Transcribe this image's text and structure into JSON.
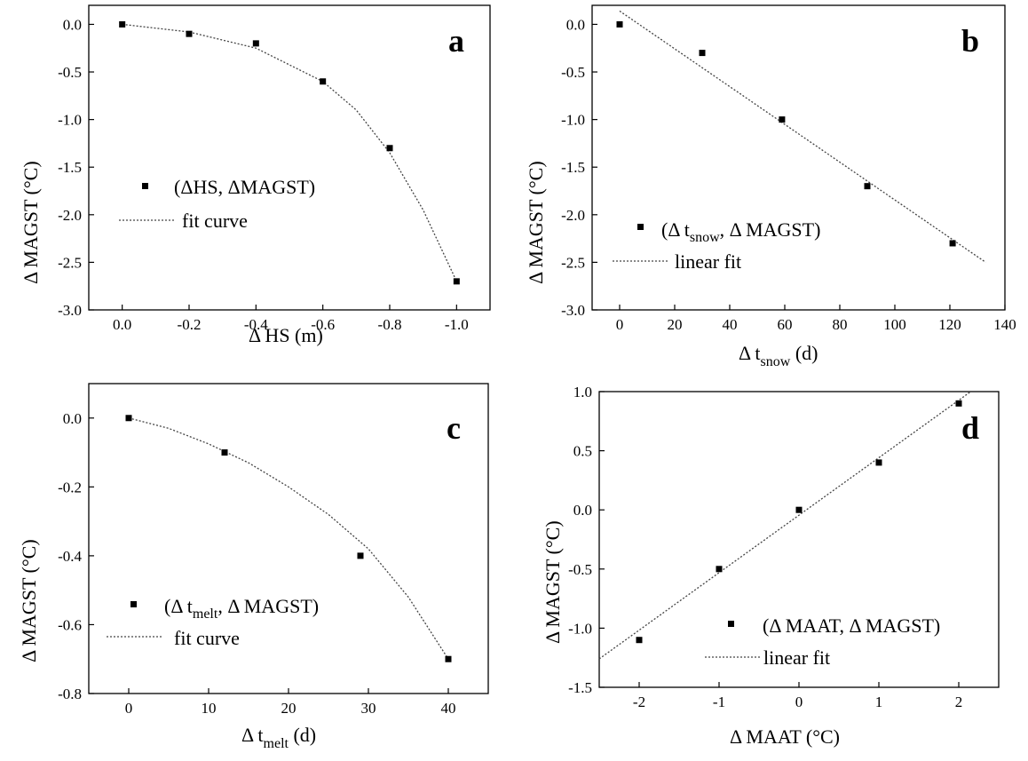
{
  "figure": {
    "panels": [
      {
        "letter": "a",
        "x_label": "Δ  HS (m)",
        "y_label": "Δ MAGST (°C)",
        "legend": [
          {
            "marker": "square",
            "text": "(ΔHS, ΔMAGST)"
          },
          {
            "marker": "dotted-line",
            "text": "fit curve"
          }
        ]
      },
      {
        "letter": "b",
        "x_label": "Δ t",
        "x_label_sub": "snow",
        "x_label_tail": " (d)",
        "y_label": "Δ MAGST (°C)",
        "legend": [
          {
            "marker": "square",
            "text": "(Δ t",
            "sub": "snow",
            "tail": ", Δ MAGST)"
          },
          {
            "marker": "dotted-line",
            "text": "linear fit"
          }
        ]
      },
      {
        "letter": "c",
        "x_label": "Δ t",
        "x_label_sub": "melt",
        "x_label_tail": " (d)",
        "y_label": "Δ MAGST (°C)",
        "legend": [
          {
            "marker": "square",
            "text": "(Δ t",
            "sub": "melt",
            "tail": ", Δ MAGST)"
          },
          {
            "marker": "dotted-line",
            "text": "fit curve"
          }
        ]
      },
      {
        "letter": "d",
        "x_label": "Δ MAAT (°C)",
        "y_label": "Δ MAGST (°C)",
        "legend": [
          {
            "marker": "square",
            "text": "(Δ MAAT, Δ MAGST)"
          },
          {
            "marker": "dotted-line",
            "text": "linear fit"
          }
        ]
      }
    ]
  },
  "chart_data": [
    {
      "type": "scatter",
      "panel": "a",
      "x_ticks": [
        "0.0",
        "-0.2",
        "-0.4",
        "-0.6",
        "-0.8",
        "-1.0"
      ],
      "x_tick_values": [
        0.0,
        -0.2,
        -0.4,
        -0.6,
        -0.8,
        -1.0
      ],
      "y_ticks": [
        "0.0",
        "-0.5",
        "-1.0",
        "-1.5",
        "-2.0",
        "-2.5",
        "-3.0"
      ],
      "y_tick_values": [
        0.0,
        -0.5,
        -1.0,
        -1.5,
        -2.0,
        -2.5,
        -3.0
      ],
      "xlim": [
        0.1,
        -1.1
      ],
      "ylim": [
        -3.0,
        0.2
      ],
      "points": {
        "x": [
          0.0,
          -0.2,
          -0.4,
          -0.6,
          -0.8,
          -1.0
        ],
        "y": [
          0.0,
          -0.1,
          -0.2,
          -0.6,
          -1.3,
          -2.7
        ]
      },
      "fit": {
        "kind": "curve",
        "x": [
          0.0,
          -0.2,
          -0.4,
          -0.6,
          -0.7,
          -0.8,
          -0.9,
          -1.0
        ],
        "y": [
          0.0,
          -0.08,
          -0.25,
          -0.6,
          -0.9,
          -1.35,
          -1.95,
          -2.7
        ]
      }
    },
    {
      "type": "scatter",
      "panel": "b",
      "x_ticks": [
        "0",
        "20",
        "40",
        "60",
        "80",
        "100",
        "120",
        "140"
      ],
      "x_tick_values": [
        0,
        20,
        40,
        60,
        80,
        100,
        120,
        140
      ],
      "y_ticks": [
        "0.0",
        "-0.5",
        "-1.0",
        "-1.5",
        "-2.0",
        "-2.5",
        "-3.0"
      ],
      "y_tick_values": [
        0.0,
        -0.5,
        -1.0,
        -1.5,
        -2.0,
        -2.5,
        -3.0
      ],
      "xlim": [
        -10,
        140
      ],
      "ylim": [
        -3.0,
        0.2
      ],
      "points": {
        "x": [
          0,
          30,
          59,
          90,
          121
        ],
        "y": [
          0.0,
          -0.3,
          -1.0,
          -1.7,
          -2.3
        ]
      },
      "fit": {
        "kind": "line",
        "x": [
          0,
          133
        ],
        "y": [
          0.14,
          -2.5
        ]
      }
    },
    {
      "type": "scatter",
      "panel": "c",
      "x_ticks": [
        "0",
        "10",
        "20",
        "30",
        "40"
      ],
      "x_tick_values": [
        0,
        10,
        20,
        30,
        40
      ],
      "y_ticks": [
        "0.0",
        "-0.2",
        "-0.4",
        "-0.6",
        "-0.8"
      ],
      "y_tick_values": [
        0.0,
        -0.2,
        -0.4,
        -0.6,
        -0.8
      ],
      "xlim": [
        -5,
        45
      ],
      "ylim": [
        -0.8,
        0.1
      ],
      "points": {
        "x": [
          0,
          12,
          29,
          40
        ],
        "y": [
          0.0,
          -0.1,
          -0.4,
          -0.7
        ]
      },
      "fit": {
        "kind": "curve",
        "x": [
          0,
          5,
          10,
          15,
          20,
          25,
          30,
          35,
          40
        ],
        "y": [
          0.0,
          -0.03,
          -0.075,
          -0.13,
          -0.2,
          -0.28,
          -0.38,
          -0.52,
          -0.7
        ]
      }
    },
    {
      "type": "scatter",
      "panel": "d",
      "x_ticks": [
        "-2",
        "-1",
        "0",
        "1",
        "2"
      ],
      "x_tick_values": [
        -2,
        -1,
        0,
        1,
        2
      ],
      "y_ticks": [
        "1.0",
        "0.5",
        "0.0",
        "-0.5",
        "-1.0",
        "-1.5"
      ],
      "y_tick_values": [
        1.0,
        0.5,
        0.0,
        -0.5,
        -1.0,
        -1.5
      ],
      "xlim": [
        -2.5,
        2.5
      ],
      "ylim": [
        -1.5,
        1.0
      ],
      "points": {
        "x": [
          -2,
          -1,
          0,
          1,
          2
        ],
        "y": [
          -1.1,
          -0.5,
          0.0,
          0.4,
          0.9
        ]
      },
      "fit": {
        "kind": "line",
        "x": [
          -2.5,
          2.15
        ],
        "y": [
          -1.26,
          1.0
        ]
      }
    }
  ]
}
